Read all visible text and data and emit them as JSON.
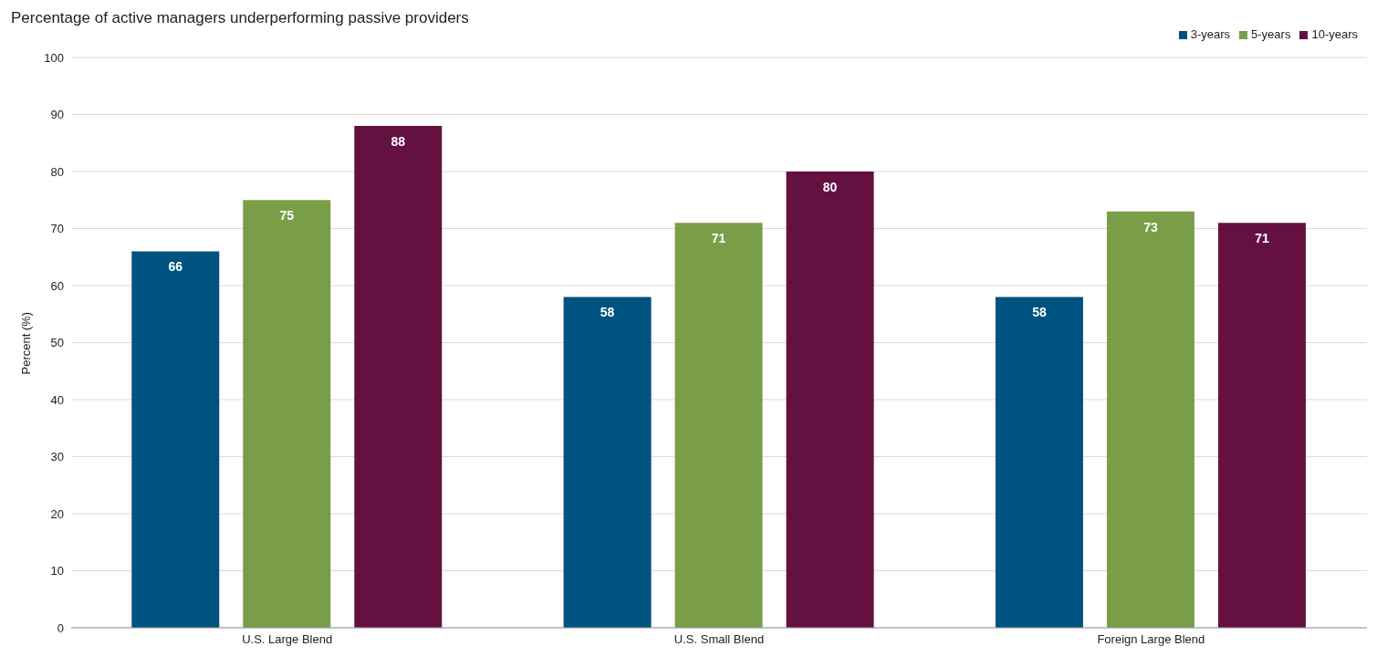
{
  "chart_data": {
    "type": "bar",
    "title": "Percentage of active managers underperforming  passive providers",
    "ylabel": "Percent (%)",
    "categories": [
      "U.S. Large Blend",
      "U.S. Small Blend",
      "Foreign Large Blend"
    ],
    "series": [
      {
        "name": "3-years",
        "color": "#00527f",
        "values": [
          66,
          58,
          58
        ]
      },
      {
        "name": "5-years",
        "color": "#7a9e48",
        "values": [
          75,
          71,
          73
        ]
      },
      {
        "name": "10-years",
        "color": "#641142",
        "values": [
          88,
          80,
          71
        ]
      }
    ],
    "ylim": [
      0,
      100
    ],
    "yticks": [
      0,
      10,
      20,
      30,
      40,
      50,
      60,
      70,
      80,
      90,
      100
    ],
    "grid": "y",
    "legend": "top right",
    "data_labels": true
  }
}
